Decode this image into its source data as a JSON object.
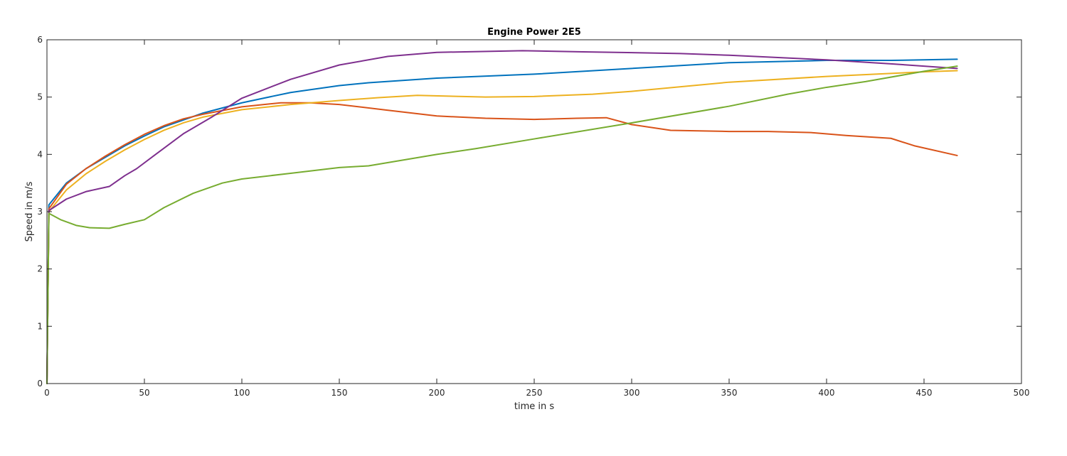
{
  "chart_data": {
    "type": "line",
    "title": "Engine Power 2E5",
    "xlabel": "time in s",
    "ylabel": "Speed in m/s",
    "xlim": [
      0,
      500
    ],
    "ylim": [
      0,
      6
    ],
    "xticks": [
      "0",
      "50",
      "100",
      "150",
      "200",
      "250",
      "300",
      "350",
      "400",
      "450",
      "500"
    ],
    "yticks": [
      "0",
      "1",
      "2",
      "3",
      "4",
      "5",
      "6"
    ],
    "grid": false,
    "legend": "none",
    "series": [
      {
        "color": "#0072BD",
        "points": [
          [
            0,
            0
          ],
          [
            1,
            3.12
          ],
          [
            10,
            3.5
          ],
          [
            20,
            3.75
          ],
          [
            30,
            3.95
          ],
          [
            40,
            4.15
          ],
          [
            50,
            4.32
          ],
          [
            60,
            4.48
          ],
          [
            70,
            4.6
          ],
          [
            80,
            4.72
          ],
          [
            100,
            4.9
          ],
          [
            125,
            5.08
          ],
          [
            150,
            5.2
          ],
          [
            165,
            5.25
          ],
          [
            200,
            5.33
          ],
          [
            250,
            5.4
          ],
          [
            300,
            5.5
          ],
          [
            350,
            5.6
          ],
          [
            400,
            5.64
          ],
          [
            433,
            5.64
          ],
          [
            467,
            5.66
          ]
        ]
      },
      {
        "color": "#D95319",
        "points": [
          [
            0,
            0
          ],
          [
            1,
            3.05
          ],
          [
            10,
            3.48
          ],
          [
            20,
            3.75
          ],
          [
            30,
            3.97
          ],
          [
            40,
            4.17
          ],
          [
            50,
            4.35
          ],
          [
            60,
            4.5
          ],
          [
            70,
            4.62
          ],
          [
            80,
            4.7
          ],
          [
            100,
            4.83
          ],
          [
            120,
            4.9
          ],
          [
            135,
            4.9
          ],
          [
            150,
            4.87
          ],
          [
            175,
            4.77
          ],
          [
            200,
            4.67
          ],
          [
            225,
            4.63
          ],
          [
            250,
            4.61
          ],
          [
            272,
            4.63
          ],
          [
            287,
            4.64
          ],
          [
            300,
            4.52
          ],
          [
            320,
            4.42
          ],
          [
            350,
            4.4
          ],
          [
            370,
            4.4
          ],
          [
            392,
            4.38
          ],
          [
            410,
            4.33
          ],
          [
            433,
            4.28
          ],
          [
            445,
            4.15
          ],
          [
            467,
            3.98
          ]
        ]
      },
      {
        "color": "#EDB120",
        "points": [
          [
            0,
            0
          ],
          [
            1,
            3.0
          ],
          [
            10,
            3.38
          ],
          [
            20,
            3.66
          ],
          [
            30,
            3.88
          ],
          [
            40,
            4.08
          ],
          [
            50,
            4.26
          ],
          [
            60,
            4.42
          ],
          [
            70,
            4.55
          ],
          [
            80,
            4.65
          ],
          [
            100,
            4.78
          ],
          [
            125,
            4.87
          ],
          [
            150,
            4.94
          ],
          [
            170,
            4.99
          ],
          [
            190,
            5.03
          ],
          [
            225,
            5.0
          ],
          [
            250,
            5.01
          ],
          [
            280,
            5.05
          ],
          [
            300,
            5.1
          ],
          [
            350,
            5.26
          ],
          [
            400,
            5.36
          ],
          [
            450,
            5.44
          ],
          [
            467,
            5.46
          ]
        ]
      },
      {
        "color": "#7E2F8E",
        "points": [
          [
            0,
            0
          ],
          [
            1,
            3.02
          ],
          [
            10,
            3.22
          ],
          [
            20,
            3.35
          ],
          [
            32,
            3.44
          ],
          [
            40,
            3.63
          ],
          [
            46,
            3.75
          ],
          [
            55,
            3.98
          ],
          [
            70,
            4.36
          ],
          [
            85,
            4.66
          ],
          [
            100,
            4.98
          ],
          [
            125,
            5.31
          ],
          [
            150,
            5.56
          ],
          [
            175,
            5.71
          ],
          [
            200,
            5.78
          ],
          [
            244,
            5.81
          ],
          [
            275,
            5.79
          ],
          [
            325,
            5.76
          ],
          [
            350,
            5.73
          ],
          [
            400,
            5.65
          ],
          [
            433,
            5.58
          ],
          [
            467,
            5.5
          ]
        ]
      },
      {
        "color": "#77AC30",
        "points": [
          [
            0,
            0
          ],
          [
            1,
            2.97
          ],
          [
            7,
            2.86
          ],
          [
            15,
            2.76
          ],
          [
            22,
            2.72
          ],
          [
            32,
            2.71
          ],
          [
            40,
            2.78
          ],
          [
            50,
            2.86
          ],
          [
            60,
            3.07
          ],
          [
            75,
            3.32
          ],
          [
            90,
            3.5
          ],
          [
            100,
            3.57
          ],
          [
            125,
            3.67
          ],
          [
            150,
            3.77
          ],
          [
            165,
            3.8
          ],
          [
            200,
            4.0
          ],
          [
            220,
            4.1
          ],
          [
            250,
            4.27
          ],
          [
            300,
            4.55
          ],
          [
            350,
            4.84
          ],
          [
            380,
            5.05
          ],
          [
            400,
            5.17
          ],
          [
            420,
            5.27
          ],
          [
            450,
            5.45
          ],
          [
            467,
            5.54
          ]
        ]
      }
    ]
  }
}
